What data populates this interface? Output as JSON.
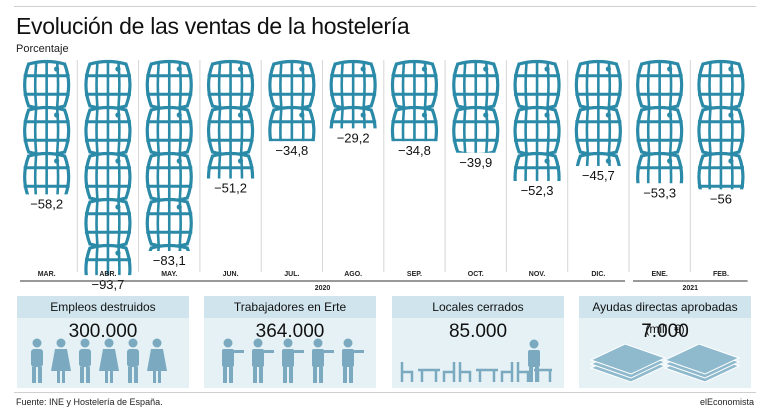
{
  "header": {
    "title": "Evolución de las ventas de la hostelería",
    "subtitle": "Porcentaje"
  },
  "chart_data": {
    "type": "bar",
    "categories": [
      "MAR.",
      "ABR.",
      "MAY.",
      "JUN.",
      "JUL.",
      "AGO.",
      "SEP.",
      "OCT.",
      "NOV.",
      "DIC.",
      "ENE.",
      "FEB."
    ],
    "values": [
      -58.2,
      -93.7,
      -83.1,
      -51.2,
      -34.8,
      -29.2,
      -34.8,
      -39.9,
      -52.3,
      -45.7,
      -53.3,
      -56
    ],
    "value_labels": [
      "−58,2",
      "−93,7",
      "−83,1",
      "−51,2",
      "−34,8",
      "−29,2",
      "−34,8",
      "−39,9",
      "−52,3",
      "−45,7",
      "−53,3",
      "−56"
    ],
    "year_labels": [
      "2020",
      "2021"
    ],
    "title": "Evolución de las ventas de la hostelería",
    "ylabel": "Porcentaje",
    "mark_color": "#2a8aa8"
  },
  "panels": [
    {
      "label": "Empleos destruidos",
      "value": "300.000",
      "icon": "person-icon"
    },
    {
      "label": "Trabajadores en Erte",
      "value": "364.000",
      "icon": "waiter-icon"
    },
    {
      "label": "Locales cerrados",
      "value": "85.000",
      "icon": "table-chairs-icon"
    },
    {
      "label": "Ayudas directas aprobadas (mill. €)",
      "value": "7.000",
      "icon": "banknotes-icon"
    }
  ],
  "footer": {
    "source": "Fuente: INE y Hostelería de España.",
    "brand": "elEconomista"
  },
  "colors": {
    "accent": "#2a8aa8",
    "panel_bg": "#e5f1f5",
    "panel_head": "#cfe4ec"
  }
}
